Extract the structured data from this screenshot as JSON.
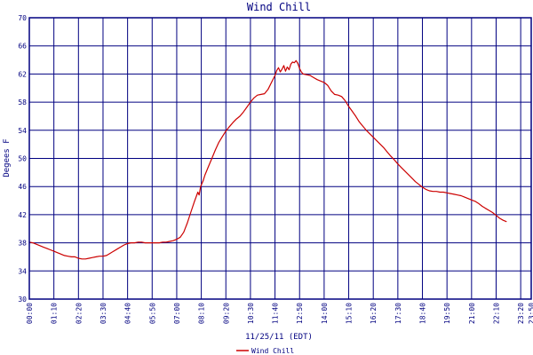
{
  "chart_data": {
    "type": "line",
    "title": "Wind Chill",
    "xlabel": "11/25/11 (EDT)",
    "ylabel": "Degees F",
    "ylim": [
      30,
      70
    ],
    "yticks": [
      "30",
      "34",
      "38",
      "42",
      "46",
      "50",
      "54",
      "58",
      "62",
      "66",
      "70"
    ],
    "xticks": [
      "00:00",
      "01:10",
      "02:20",
      "03:30",
      "04:40",
      "05:50",
      "07:00",
      "08:10",
      "09:20",
      "10:30",
      "11:40",
      "12:50",
      "14:00",
      "15:10",
      "16:20",
      "17:30",
      "18:40",
      "19:50",
      "21:00",
      "22:10",
      "23:20",
      "23:50"
    ],
    "grid": true,
    "legend_placement": "bottom-left",
    "series": [
      {
        "name": "Wind Chill",
        "color": "#cc0000",
        "points": [
          [
            0,
            38.1
          ],
          [
            10,
            38.0
          ],
          [
            20,
            37.8
          ],
          [
            30,
            37.6
          ],
          [
            40,
            37.4
          ],
          [
            50,
            37.2
          ],
          [
            60,
            37.0
          ],
          [
            70,
            36.8
          ],
          [
            80,
            36.6
          ],
          [
            90,
            36.4
          ],
          [
            100,
            36.2
          ],
          [
            110,
            36.1
          ],
          [
            120,
            36.0
          ],
          [
            130,
            36.0
          ],
          [
            140,
            35.8
          ],
          [
            150,
            35.7
          ],
          [
            160,
            35.7
          ],
          [
            170,
            35.8
          ],
          [
            180,
            35.9
          ],
          [
            190,
            36.0
          ],
          [
            200,
            36.1
          ],
          [
            210,
            36.1
          ],
          [
            220,
            36.2
          ],
          [
            230,
            36.5
          ],
          [
            240,
            36.8
          ],
          [
            250,
            37.1
          ],
          [
            260,
            37.4
          ],
          [
            270,
            37.7
          ],
          [
            280,
            37.9
          ],
          [
            290,
            38.0
          ],
          [
            300,
            38.0
          ],
          [
            310,
            38.1
          ],
          [
            320,
            38.1
          ],
          [
            330,
            38.0
          ],
          [
            340,
            38.0
          ],
          [
            350,
            38.0
          ],
          [
            360,
            38.0
          ],
          [
            370,
            38.0
          ],
          [
            380,
            38.1
          ],
          [
            390,
            38.1
          ],
          [
            400,
            38.2
          ],
          [
            410,
            38.3
          ],
          [
            420,
            38.5
          ],
          [
            430,
            38.8
          ],
          [
            440,
            39.5
          ],
          [
            450,
            40.8
          ],
          [
            460,
            42.3
          ],
          [
            470,
            43.8
          ],
          [
            480,
            45.2
          ],
          [
            484,
            44.8
          ],
          [
            488,
            46.0
          ],
          [
            495,
            46.8
          ],
          [
            500,
            47.6
          ],
          [
            510,
            48.8
          ],
          [
            520,
            50.0
          ],
          [
            530,
            51.2
          ],
          [
            540,
            52.3
          ],
          [
            550,
            53.1
          ],
          [
            560,
            53.9
          ],
          [
            570,
            54.5
          ],
          [
            580,
            55.1
          ],
          [
            590,
            55.6
          ],
          [
            600,
            56.0
          ],
          [
            610,
            56.6
          ],
          [
            620,
            57.3
          ],
          [
            630,
            58.0
          ],
          [
            640,
            58.6
          ],
          [
            650,
            59.0
          ],
          [
            660,
            59.1
          ],
          [
            670,
            59.2
          ],
          [
            680,
            59.8
          ],
          [
            690,
            60.8
          ],
          [
            700,
            61.8
          ],
          [
            705,
            62.5
          ],
          [
            710,
            62.9
          ],
          [
            715,
            62.3
          ],
          [
            720,
            62.7
          ],
          [
            725,
            63.2
          ],
          [
            730,
            62.4
          ],
          [
            735,
            63.0
          ],
          [
            740,
            62.6
          ],
          [
            745,
            63.4
          ],
          [
            750,
            63.7
          ],
          [
            755,
            63.6
          ],
          [
            760,
            63.9
          ],
          [
            765,
            63.5
          ],
          [
            770,
            62.8
          ],
          [
            775,
            62.3
          ],
          [
            780,
            62.0
          ],
          [
            790,
            61.9
          ],
          [
            800,
            61.8
          ],
          [
            810,
            61.5
          ],
          [
            820,
            61.2
          ],
          [
            830,
            61.0
          ],
          [
            840,
            60.8
          ],
          [
            850,
            60.4
          ],
          [
            860,
            59.6
          ],
          [
            870,
            59.1
          ],
          [
            880,
            59.0
          ],
          [
            890,
            58.8
          ],
          [
            900,
            58.2
          ],
          [
            910,
            57.4
          ],
          [
            920,
            56.7
          ],
          [
            930,
            56.0
          ],
          [
            940,
            55.2
          ],
          [
            950,
            54.6
          ],
          [
            960,
            54.0
          ],
          [
            970,
            53.5
          ],
          [
            980,
            53.0
          ],
          [
            990,
            52.5
          ],
          [
            1000,
            52.0
          ],
          [
            1010,
            51.5
          ],
          [
            1020,
            50.9
          ],
          [
            1030,
            50.3
          ],
          [
            1040,
            49.8
          ],
          [
            1050,
            49.2
          ],
          [
            1060,
            48.7
          ],
          [
            1070,
            48.2
          ],
          [
            1080,
            47.7
          ],
          [
            1090,
            47.2
          ],
          [
            1100,
            46.7
          ],
          [
            1110,
            46.3
          ],
          [
            1120,
            45.9
          ],
          [
            1130,
            45.6
          ],
          [
            1140,
            45.4
          ],
          [
            1150,
            45.3
          ],
          [
            1160,
            45.3
          ],
          [
            1170,
            45.2
          ],
          [
            1180,
            45.2
          ],
          [
            1190,
            45.1
          ],
          [
            1200,
            45.0
          ],
          [
            1210,
            44.9
          ],
          [
            1220,
            44.8
          ],
          [
            1230,
            44.7
          ],
          [
            1240,
            44.5
          ],
          [
            1250,
            44.3
          ],
          [
            1260,
            44.1
          ],
          [
            1270,
            43.9
          ],
          [
            1280,
            43.6
          ],
          [
            1290,
            43.2
          ],
          [
            1300,
            42.9
          ],
          [
            1310,
            42.6
          ],
          [
            1320,
            42.3
          ],
          [
            1330,
            41.9
          ],
          [
            1340,
            41.5
          ],
          [
            1350,
            41.2
          ],
          [
            1360,
            41.0
          ]
        ]
      }
    ]
  }
}
